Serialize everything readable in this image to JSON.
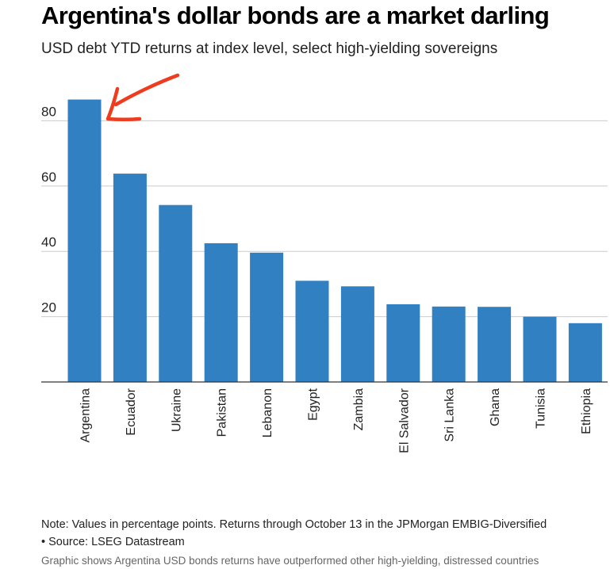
{
  "title": "Argentina's dollar bonds are a market darling",
  "subtitle": "USD debt YTD returns at index level, select high-yielding sovereigns",
  "note_line1": "Note: Values in percentage points. Returns through October 13 in the JPMorgan EMBIG-Diversified",
  "note_line2": "• Source: LSEG Datastream",
  "caption": "Graphic shows Argentina USD bonds returns have outperformed other high-yielding, distressed countries",
  "colors": {
    "bar": "#3181c2",
    "grid": "#cccccc",
    "axis": "#333333",
    "annotation_arrow": "#f03c1e"
  },
  "chart_data": {
    "type": "bar",
    "categories": [
      "Argentina",
      "Ecuador",
      "Ukraine",
      "Pakistan",
      "Lebanon",
      "Egypt",
      "Zambia",
      "El Salvador",
      "Sri Lanka",
      "Ghana",
      "Tunisia",
      "Ethiopia"
    ],
    "values": [
      86.5,
      63.8,
      54.2,
      42.5,
      39.6,
      31.0,
      29.3,
      23.8,
      23.1,
      23.0,
      20.0,
      18.0
    ],
    "yticks": [
      20,
      40,
      60,
      80
    ],
    "ylim": [
      0,
      90
    ],
    "grid": true,
    "xlabel": "",
    "ylabel": "",
    "annotations": [
      {
        "type": "arrow",
        "target": "Argentina"
      }
    ]
  }
}
